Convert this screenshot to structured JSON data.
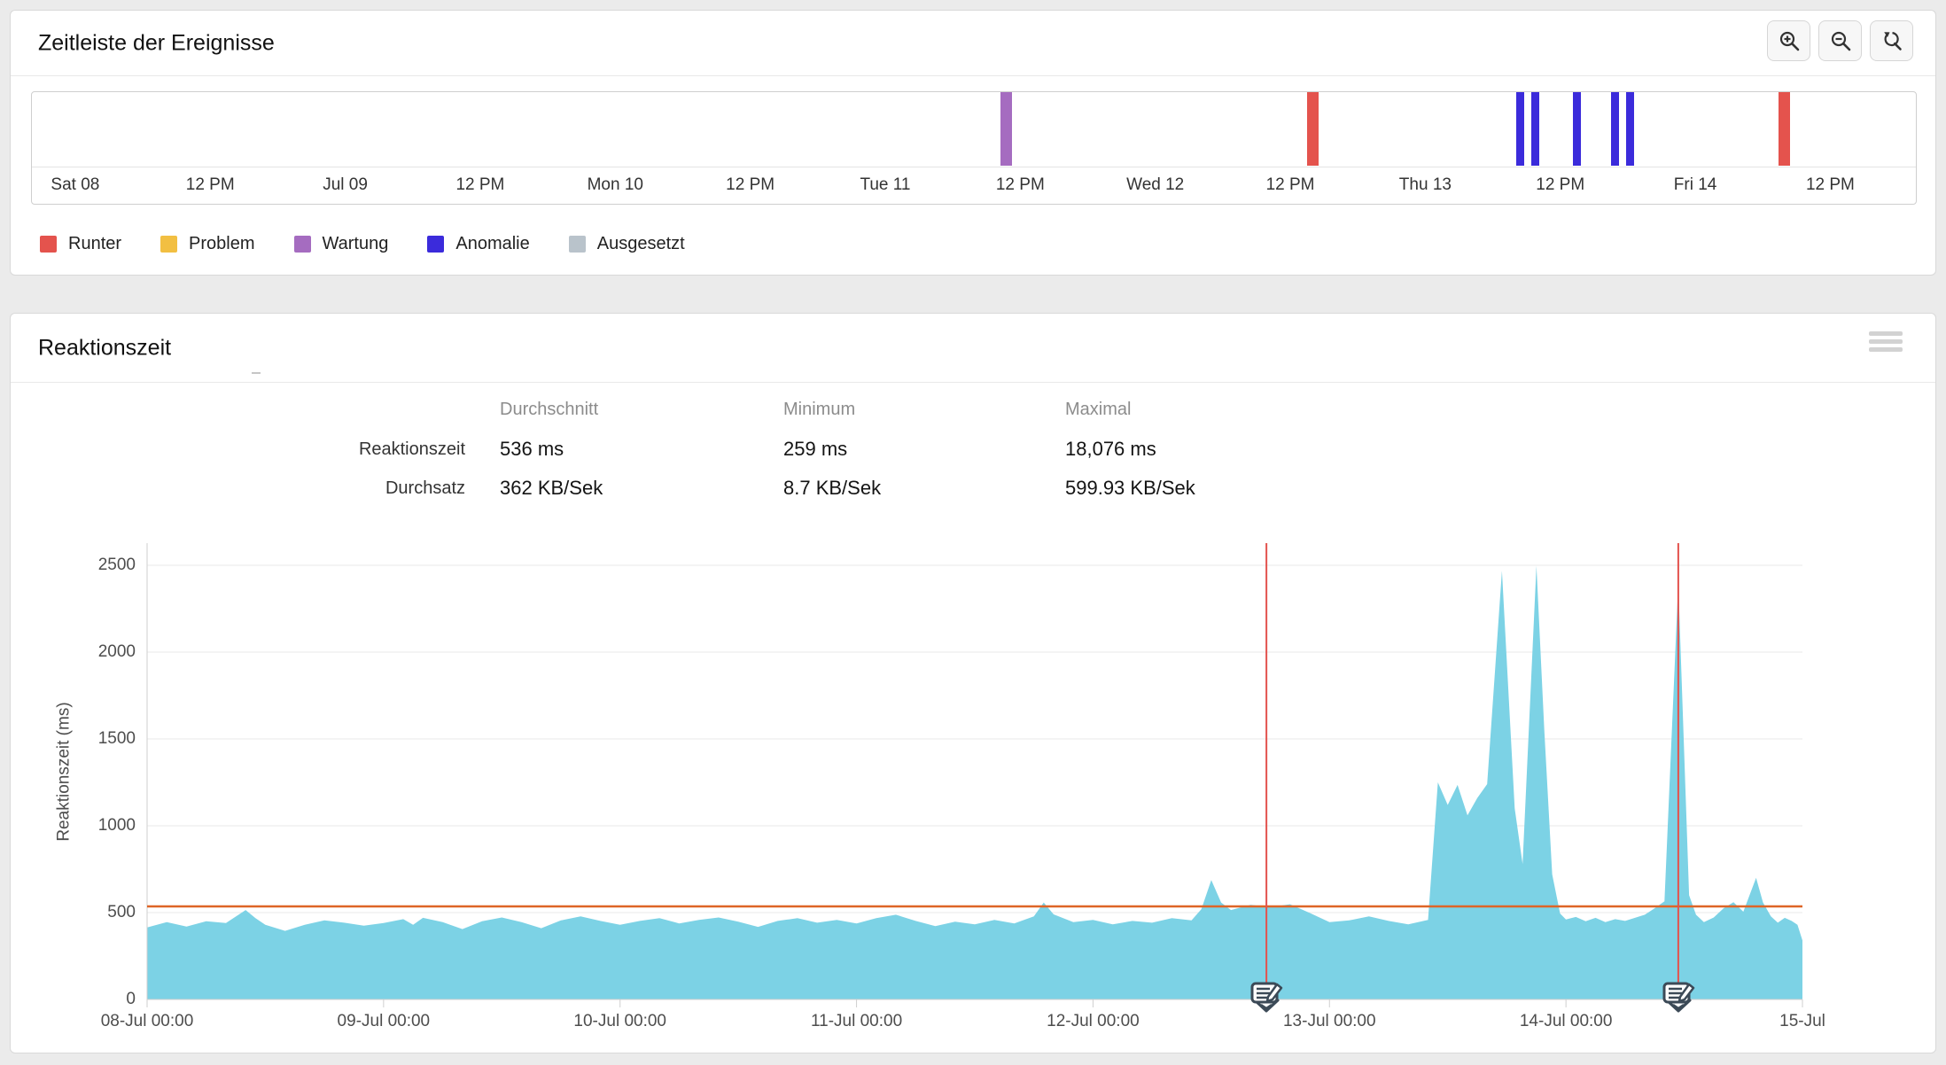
{
  "timeline_panel": {
    "title": "Zeitleiste der Ereignisse",
    "toolbar_icons": [
      "magnifier-plus-icon",
      "magnifier-minus-icon",
      "magnifier-reset-icon"
    ],
    "axis_labels": [
      "Sat 08",
      "12 PM",
      "Jul 09",
      "12 PM",
      "Mon 10",
      "12 PM",
      "Tue 11",
      "12 PM",
      "Wed 12",
      "12 PM",
      "Thu 13",
      "12 PM",
      "Fri 14",
      "12 PM"
    ],
    "event_colors": {
      "Runter": "#e4534d",
      "Problem": "#f2bf42",
      "Wartung": "#a56cc0",
      "Anomalie": "#3b2bdb",
      "Ausgesetzt": "#b9c3cb"
    },
    "events": [
      {
        "type": "Wartung",
        "pct": 51.4
      },
      {
        "type": "Runter",
        "pct": 67.7
      },
      {
        "type": "Anomalie",
        "pct": 78.8
      },
      {
        "type": "Anomalie",
        "pct": 79.6
      },
      {
        "type": "Anomalie",
        "pct": 81.8
      },
      {
        "type": "Anomalie",
        "pct": 83.8
      },
      {
        "type": "Anomalie",
        "pct": 84.6
      },
      {
        "type": "Runter",
        "pct": 92.7
      }
    ],
    "legend": [
      {
        "label": "Runter",
        "color": "#e4534d"
      },
      {
        "label": "Problem",
        "color": "#f2bf42"
      },
      {
        "label": "Wartung",
        "color": "#a56cc0"
      },
      {
        "label": "Anomalie",
        "color": "#3b2bdb"
      },
      {
        "label": "Ausgesetzt",
        "color": "#b9c3cb"
      }
    ]
  },
  "response_panel": {
    "title": "Reaktionszeit",
    "menu_icon": "hamburger-menu-icon",
    "stats": {
      "columns": [
        "Durchschnitt",
        "Minimum",
        "Maximal"
      ],
      "rows": [
        {
          "label": "Reaktionszeit",
          "values": [
            "536 ms",
            "259 ms",
            "18,076 ms"
          ]
        },
        {
          "label": "Durchsatz",
          "values": [
            "362 KB/Sek",
            "8.7 KB/Sek",
            "599.93 KB/Sek"
          ]
        }
      ]
    }
  },
  "chart_data": {
    "type": "area",
    "title": "Reaktionszeit",
    "ylabel": "Reaktionszeit (ms)",
    "ylim": [
      0,
      2627
    ],
    "yticks": [
      0,
      500,
      1000,
      1500,
      2000,
      2500
    ],
    "grid": "horizontal-only",
    "x_hours": 168,
    "x_start": "08-Jul 00:00",
    "x_end": "15-Jul 00:00",
    "xticks": [
      {
        "hour": 0,
        "label": "08-Jul 00:00"
      },
      {
        "hour": 24,
        "label": "09-Jul 00:00"
      },
      {
        "hour": 48,
        "label": "10-Jul 00:00"
      },
      {
        "hour": 72,
        "label": "11-Jul 00:00"
      },
      {
        "hour": 96,
        "label": "12-Jul 00:00"
      },
      {
        "hour": 120,
        "label": "13-Jul 00:00"
      },
      {
        "hour": 144,
        "label": "14-Jul 00:00"
      },
      {
        "hour": 168,
        "label": "15-Jul"
      }
    ],
    "area_color": "#7cd2e5",
    "threshold": {
      "value": 536,
      "color": "#de6527",
      "meaning": "Durchschnitt 536 ms"
    },
    "event_lines": [
      {
        "hour": 113.6,
        "color": "#e3524d",
        "icon": "annotation-note-icon"
      },
      {
        "hour": 155.4,
        "color": "#e3524d",
        "icon": "annotation-note-icon"
      }
    ],
    "series": [
      {
        "name": "Reaktionszeit",
        "unit": "ms",
        "points": [
          [
            0,
            415
          ],
          [
            2,
            445
          ],
          [
            4,
            420
          ],
          [
            6,
            450
          ],
          [
            8,
            440
          ],
          [
            10,
            515
          ],
          [
            11,
            468
          ],
          [
            12,
            430
          ],
          [
            14,
            395
          ],
          [
            16,
            430
          ],
          [
            18,
            455
          ],
          [
            20,
            442
          ],
          [
            22,
            425
          ],
          [
            24,
            440
          ],
          [
            26,
            462
          ],
          [
            27,
            430
          ],
          [
            28,
            470
          ],
          [
            30,
            445
          ],
          [
            32,
            405
          ],
          [
            34,
            450
          ],
          [
            36,
            472
          ],
          [
            38,
            445
          ],
          [
            40,
            410
          ],
          [
            42,
            455
          ],
          [
            44,
            478
          ],
          [
            46,
            452
          ],
          [
            48,
            430
          ],
          [
            50,
            452
          ],
          [
            52,
            468
          ],
          [
            54,
            438
          ],
          [
            56,
            458
          ],
          [
            58,
            472
          ],
          [
            60,
            448
          ],
          [
            62,
            418
          ],
          [
            64,
            452
          ],
          [
            66,
            468
          ],
          [
            68,
            442
          ],
          [
            70,
            458
          ],
          [
            72,
            438
          ],
          [
            74,
            468
          ],
          [
            76,
            488
          ],
          [
            78,
            452
          ],
          [
            80,
            422
          ],
          [
            82,
            448
          ],
          [
            84,
            432
          ],
          [
            86,
            458
          ],
          [
            88,
            438
          ],
          [
            90,
            478
          ],
          [
            91,
            558
          ],
          [
            92,
            490
          ],
          [
            94,
            445
          ],
          [
            96,
            458
          ],
          [
            98,
            432
          ],
          [
            100,
            452
          ],
          [
            102,
            442
          ],
          [
            104,
            468
          ],
          [
            106,
            455
          ],
          [
            107,
            520
          ],
          [
            108,
            688
          ],
          [
            109,
            558
          ],
          [
            110,
            515
          ],
          [
            112,
            545
          ],
          [
            114,
            532
          ],
          [
            116,
            548
          ],
          [
            118,
            498
          ],
          [
            120,
            445
          ],
          [
            122,
            455
          ],
          [
            124,
            478
          ],
          [
            126,
            452
          ],
          [
            128,
            432
          ],
          [
            130,
            458
          ],
          [
            131,
            1250
          ],
          [
            132,
            1120
          ],
          [
            133,
            1235
          ],
          [
            134,
            1060
          ],
          [
            135,
            1160
          ],
          [
            136,
            1240
          ],
          [
            137.5,
            2468
          ],
          [
            138.8,
            1100
          ],
          [
            139.6,
            780
          ],
          [
            141,
            2497
          ],
          [
            141.8,
            1550
          ],
          [
            142.6,
            720
          ],
          [
            143.4,
            495
          ],
          [
            144,
            460
          ],
          [
            145,
            475
          ],
          [
            146,
            450
          ],
          [
            147,
            470
          ],
          [
            148,
            445
          ],
          [
            149,
            462
          ],
          [
            150,
            452
          ],
          [
            151,
            470
          ],
          [
            152,
            488
          ],
          [
            153,
            525
          ],
          [
            154,
            565
          ],
          [
            155.4,
            2400
          ],
          [
            156.5,
            600
          ],
          [
            157.2,
            488
          ],
          [
            158,
            445
          ],
          [
            159,
            472
          ],
          [
            160,
            525
          ],
          [
            161,
            560
          ],
          [
            162,
            505
          ],
          [
            163.3,
            700
          ],
          [
            164,
            558
          ],
          [
            164.8,
            478
          ],
          [
            165.5,
            442
          ],
          [
            166.2,
            470
          ],
          [
            166.9,
            452
          ],
          [
            167.5,
            430
          ],
          [
            168,
            340
          ]
        ]
      }
    ]
  }
}
